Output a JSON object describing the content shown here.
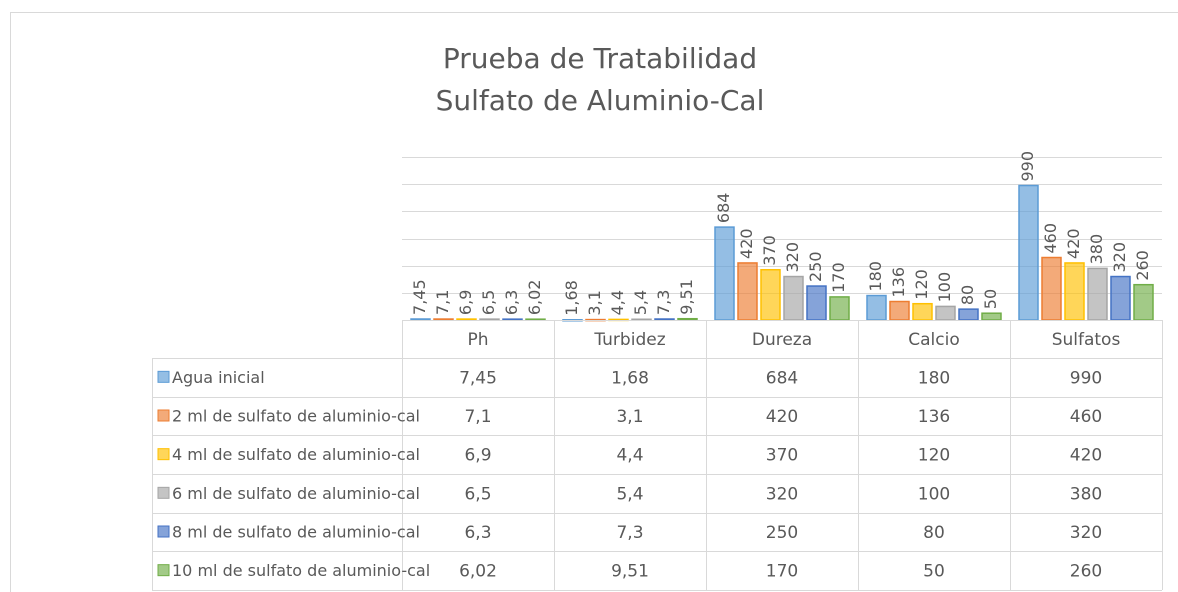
{
  "chart_data": {
    "type": "bar",
    "title": [
      "Prueba de Tratabilidad",
      "Sulfato de Aluminio-Cal"
    ],
    "categories": [
      "Ph",
      "Turbidez",
      "Dureza",
      "Calcio",
      "Sulfatos"
    ],
    "series": [
      {
        "name": "Agua inicial",
        "color": "#5b9bd5",
        "values": [
          7.45,
          1.68,
          684,
          180,
          990
        ],
        "value_labels": [
          "7,45",
          "1,68",
          "684",
          "180",
          "990"
        ]
      },
      {
        "name": "2 ml de sulfato de aluminio-cal",
        "color": "#ed7d31",
        "values": [
          7.1,
          3.1,
          420,
          136,
          460
        ],
        "value_labels": [
          "7,1",
          "3,1",
          "420",
          "136",
          "460"
        ]
      },
      {
        "name": "4 ml de sulfato de aluminio-cal",
        "color": "#ffc000",
        "values": [
          6.9,
          4.4,
          370,
          120,
          420
        ],
        "value_labels": [
          "6,9",
          "4,4",
          "370",
          "120",
          "420"
        ]
      },
      {
        "name": "6 ml de sulfato de aluminio-cal",
        "color": "#a5a5a5",
        "values": [
          6.5,
          5.4,
          320,
          100,
          380
        ],
        "value_labels": [
          "6,5",
          "5,4",
          "320",
          "100",
          "380"
        ]
      },
      {
        "name": "8 ml de sulfato de aluminio-cal",
        "color": "#4472c4",
        "values": [
          6.3,
          7.3,
          250,
          80,
          320
        ],
        "value_labels": [
          "6,3",
          "7,3",
          "250",
          "80",
          "320"
        ]
      },
      {
        "name": "10 ml de sulfato de aluminio-cal",
        "color": "#70ad47",
        "values": [
          6.02,
          9.51,
          170,
          50,
          260
        ],
        "value_labels": [
          "6,02",
          "9,51",
          "170",
          "50",
          "260"
        ]
      }
    ],
    "ylim": [
      0,
      1200
    ],
    "yticks": [
      0,
      200,
      400,
      600,
      800,
      1000,
      1200
    ],
    "grid": true
  }
}
